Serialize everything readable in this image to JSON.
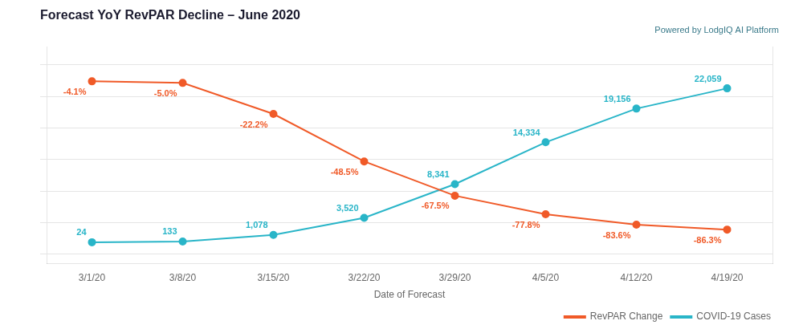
{
  "chart_data": {
    "type": "line",
    "title": "Forecast YoY RevPAR Decline – June 2020",
    "subtitle": "Powered by LodgIQ AI Platform",
    "xlabel": "Date of Forecast",
    "categories": [
      "3/1/20",
      "3/8/20",
      "3/15/20",
      "3/22/20",
      "3/29/20",
      "4/5/20",
      "4/12/20",
      "4/19/20"
    ],
    "series": [
      {
        "name": "RevPAR Change",
        "color": "#f05a28",
        "marker": "circle",
        "line_style": "solid",
        "values": [
          -4.1,
          -5.0,
          -22.2,
          -48.5,
          -67.5,
          -77.8,
          -83.6,
          -86.3
        ],
        "value_labels": [
          "-4.1%",
          "-5.0%",
          "-22.2%",
          "-48.5%",
          "-67.5%",
          "-77.8%",
          "-83.6%",
          "-86.3%"
        ]
      },
      {
        "name": "COVID-19 Cases",
        "color": "#29b5c8",
        "marker": "circle",
        "line_style": "solid",
        "axis": "y2",
        "values": [
          24,
          133,
          1078,
          3520,
          8341,
          14334,
          19156,
          22059
        ],
        "value_labels": [
          "24",
          "133",
          "1,078",
          "3,520",
          "8,341",
          "14,334",
          "19,156",
          "22,059"
        ]
      }
    ],
    "ylim": [
      -105,
      15
    ],
    "yticks": [
      -100,
      -82.5,
      -65,
      -47.5,
      -30,
      -12.5,
      5
    ],
    "y2lim": [
      -3000,
      28000
    ],
    "grid": true,
    "legend": "lower right",
    "data_labels": true,
    "tick_labels": "x"
  }
}
